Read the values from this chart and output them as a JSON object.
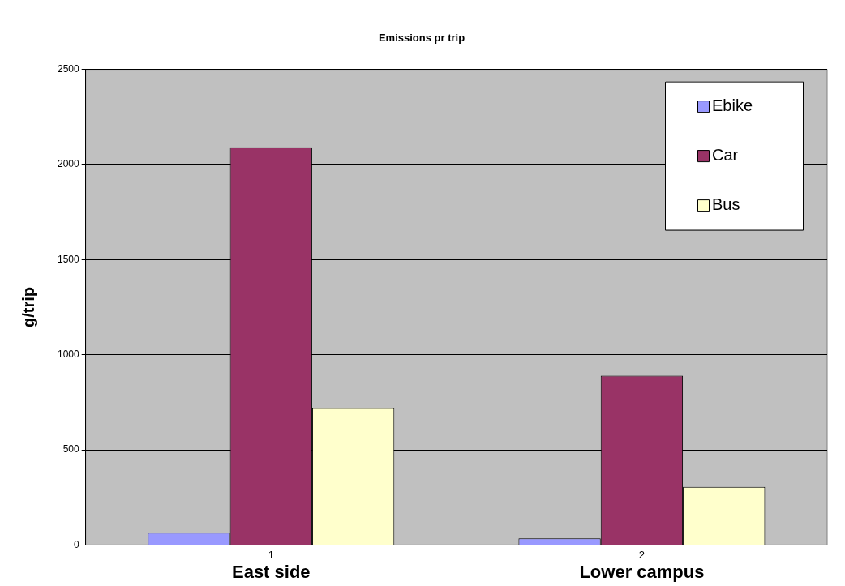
{
  "chart_data": {
    "type": "bar",
    "title": "Emissions pr trip",
    "ylabel": "g/trip",
    "categories": [
      "1",
      "2"
    ],
    "series": [
      {
        "name": "Ebike",
        "color": "#9999ff",
        "values": [
          65,
          35
        ]
      },
      {
        "name": "Car",
        "color": "#993366",
        "values": [
          2090,
          890
        ]
      },
      {
        "name": "Bus",
        "color": "#ffffcc",
        "values": [
          720,
          305
        ]
      }
    ],
    "ylim": [
      0,
      2500
    ],
    "yticks": [
      0,
      500,
      1000,
      1500,
      2000,
      2500
    ],
    "grid": "y",
    "legend": "top right",
    "annotations": [
      "East side",
      "Lower campus"
    ]
  }
}
